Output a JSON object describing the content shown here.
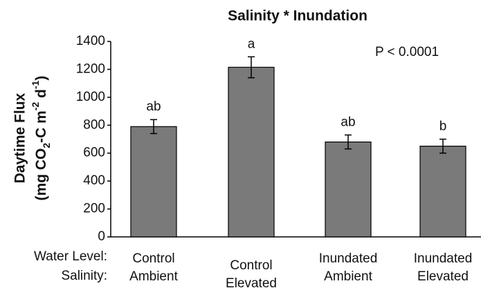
{
  "chart_data": {
    "type": "bar",
    "title": "Salinity * Inundation",
    "annotation": "P < 0.0001",
    "ylabel_line1": "Daytime Flux",
    "ylabel_line2": [
      "(mg CO",
      "2",
      "-C m",
      "-2",
      " d",
      "-1",
      ")"
    ],
    "category_rows": [
      {
        "name": "Water Level:",
        "labels": [
          "Control",
          "Control",
          "Inundated",
          "Inundated"
        ]
      },
      {
        "name": "Salinity:",
        "labels": [
          "Ambient",
          "Elevated",
          "Ambient",
          "Elevated"
        ]
      }
    ],
    "values": [
      790,
      1215,
      680,
      650
    ],
    "errors": [
      50,
      75,
      50,
      50
    ],
    "letters": [
      "ab",
      "a",
      "ab",
      "b"
    ],
    "color": "#7a7a7a",
    "ylim": [
      0,
      1400
    ],
    "yticks": [
      0,
      200,
      400,
      600,
      800,
      1000,
      1200,
      1400
    ],
    "grid": false
  }
}
